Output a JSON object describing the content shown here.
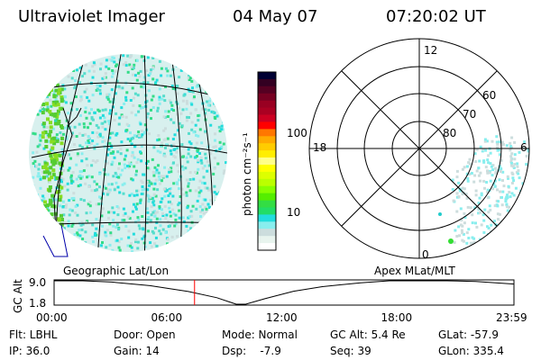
{
  "header": {
    "instrument": "Ultraviolet Imager",
    "date": "04 May 07",
    "time": "07:20:02 UT"
  },
  "colorbar": {
    "label": "photon cm⁻²s⁻¹",
    "ticks": [
      "100",
      "10"
    ],
    "colors": [
      "#000033",
      "#330022",
      "#550022",
      "#770022",
      "#990022",
      "#aa0022",
      "#cc0022",
      "#ff0000",
      "#ff7700",
      "#ffaa00",
      "#ffcc00",
      "#ffee00",
      "#ffff88",
      "#ffff00",
      "#ddff00",
      "#bbff00",
      "#88ff00",
      "#55ee00",
      "#33dd44",
      "#22dd66",
      "#22dddd",
      "#88eeee",
      "#ccdddd",
      "#e8f4ee",
      "#ffffff"
    ]
  },
  "polar": {
    "labels": [
      "12",
      "18",
      "6",
      "0"
    ],
    "rings": [
      "60",
      "70",
      "80"
    ]
  },
  "panels": {
    "left_caption": "Geographic Lat/Lon",
    "right_caption": "Apex MLat/MLT"
  },
  "chart_data": {
    "type": "line",
    "title": "",
    "ylabel": "GC Alt",
    "yticks": [
      "9.0",
      "1.8"
    ],
    "ylim": [
      1.8,
      9.0
    ],
    "xticks": [
      "00:00",
      "06:00",
      "12:00",
      "18:00",
      "23:59"
    ],
    "xlim_hours": [
      0,
      24
    ],
    "series": [
      {
        "name": "GC Alt",
        "x": [
          0,
          1.5,
          3,
          5,
          7,
          8.5,
          9.5,
          10,
          11,
          12.5,
          14,
          16,
          17.5,
          19,
          20.5,
          22,
          24
        ],
        "y": [
          9.0,
          9.0,
          8.6,
          7.5,
          5.7,
          3.8,
          1.8,
          1.8,
          3.5,
          5.8,
          7.2,
          8.4,
          9.0,
          9.0,
          9.0,
          8.8,
          8.0
        ]
      }
    ],
    "current_time_hours": 7.33,
    "marker_color": "#ff0000"
  },
  "status": {
    "flt": "Flt: LBHL",
    "ip": "IP: 36.0",
    "door": "Door: Open",
    "gain": "Gain: 14",
    "mode": "Mode: Normal",
    "dsp": "Dsp:    -7.9",
    "gcalt": "GC Alt: 5.4 Re",
    "seq": "Seq: 39",
    "glat": "GLat: -57.9",
    "glon": "GLon: 335.4"
  }
}
